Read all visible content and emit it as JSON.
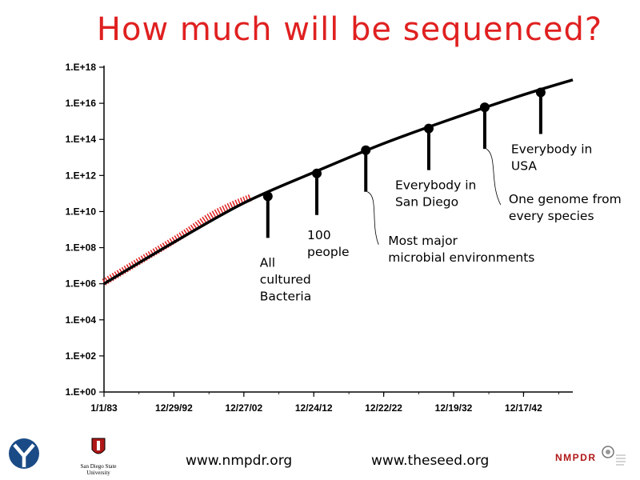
{
  "title": "How much will be sequenced?",
  "chart_data": {
    "type": "line",
    "title": "How much will be sequenced?",
    "xlabel": "",
    "ylabel": "",
    "x_tick_labels": [
      "1/1/83",
      "12/29/92",
      "12/27/02",
      "12/24/12",
      "12/22/22",
      "12/19/32",
      "12/17/42"
    ],
    "y_tick_labels": [
      "1.E+00",
      "1.E+02",
      "1.E+04",
      "1.E+06",
      "1.E+08",
      "1.E+10",
      "1.E+12",
      "1.E+14",
      "1.E+16",
      "1.E+18"
    ],
    "y_scale": "log",
    "xlim": [
      "1983-01-01",
      "2050-01-01"
    ],
    "ylim": [
      1,
      1e+18
    ],
    "series": [
      {
        "kind": "observed",
        "color": "#e02020",
        "points": [
          [
            "1983-01-01",
            1200000.0
          ],
          [
            "1986-01-01",
            6000000.0
          ],
          [
            "1989-01-01",
            30000000.0
          ],
          [
            "1992-01-01",
            150000000.0
          ],
          [
            "1995-01-01",
            800000000.0
          ],
          [
            "1998-01-01",
            5000000000.0
          ],
          [
            "2001-01-01",
            20000000000.0
          ],
          [
            "2004-01-01",
            60000000000.0
          ]
        ]
      },
      {
        "kind": "projection",
        "color": "#000000",
        "points": [
          [
            "1983-01-01",
            1000000.0
          ],
          [
            "1993-01-01",
            200000000.0
          ],
          [
            "2003-01-01",
            30000000000.0
          ],
          [
            "2013-01-01",
            1500000000000.0
          ],
          [
            "2023-01-01",
            60000000000000.0
          ],
          [
            "2033-01-01",
            1500000000000000.0
          ],
          [
            "2043-01-01",
            3e+16
          ],
          [
            "2050-01-01",
            2e+17
          ]
        ]
      }
    ],
    "milestones": [
      {
        "x": "2006-06-01",
        "y": 70000000000.0,
        "label": [
          "All",
          "cultured",
          "Bacteria"
        ]
      },
      {
        "x": "2013-06-01",
        "y": 1300000000000.0,
        "label": [
          "100",
          "people"
        ]
      },
      {
        "x": "2020-06-01",
        "y": 25000000000000.0,
        "label": [
          "Most major",
          "microbial environments"
        ]
      },
      {
        "x": "2029-06-01",
        "y": 400000000000000.0,
        "label": [
          "Everybody in",
          "San Diego"
        ]
      },
      {
        "x": "2037-06-01",
        "y": 6000000000000000.0,
        "label": [
          "One genome from",
          "every species"
        ]
      },
      {
        "x": "2045-06-01",
        "y": 4e+16,
        "label": [
          "Everybody in",
          "USA"
        ]
      }
    ]
  },
  "footer": {
    "link1": "www.nmpdr.org",
    "link2": "www.theseed.org",
    "sdsu_line1": "San Diego State",
    "sdsu_line2": "University",
    "nmpdr_logo": "NMPDR"
  },
  "colors": {
    "title": "#e02020",
    "observed": "#e02020",
    "projection": "#000000",
    "nmpdr": "#b01818"
  }
}
